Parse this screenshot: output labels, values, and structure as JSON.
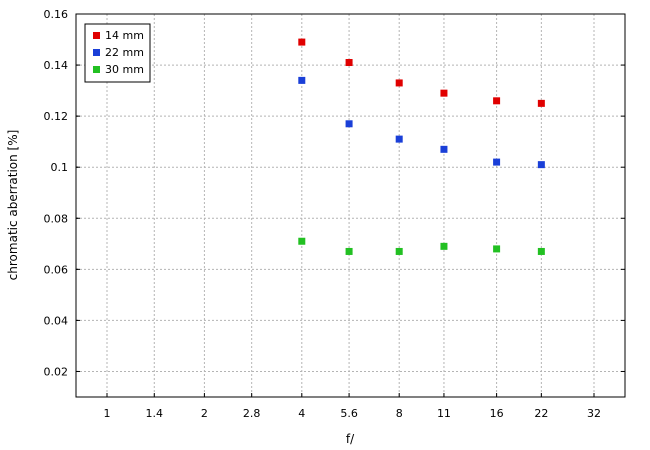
{
  "chart_data": {
    "type": "scatter",
    "xlabel": "f/",
    "ylabel": "chromatic  aberration [%]",
    "x_categories": [
      "1",
      "1.4",
      "2",
      "2.8",
      "4",
      "5.6",
      "8",
      "11",
      "16",
      "22",
      "32"
    ],
    "ylim": [
      0.01,
      0.16
    ],
    "y_ticks": [
      "0.02",
      "0.04",
      "0.06",
      "0.08",
      "0.1",
      "0.12",
      "0.14",
      "0.16"
    ],
    "grid": true,
    "legend_position": "top-left",
    "series": [
      {
        "name": "14 mm",
        "color": "#e00000",
        "x": [
          "4",
          "5.6",
          "8",
          "11",
          "16",
          "22"
        ],
        "y": [
          0.149,
          0.141,
          0.133,
          0.129,
          0.126,
          0.125
        ]
      },
      {
        "name": "22 mm",
        "color": "#1a3fd8",
        "x": [
          "4",
          "5.6",
          "8",
          "11",
          "16",
          "22"
        ],
        "y": [
          0.134,
          0.117,
          0.111,
          0.107,
          0.102,
          0.101
        ]
      },
      {
        "name": "30 mm",
        "color": "#22c022",
        "x": [
          "4",
          "5.6",
          "8",
          "11",
          "16",
          "22"
        ],
        "y": [
          0.071,
          0.067,
          0.067,
          0.069,
          0.068,
          0.067
        ]
      }
    ]
  }
}
